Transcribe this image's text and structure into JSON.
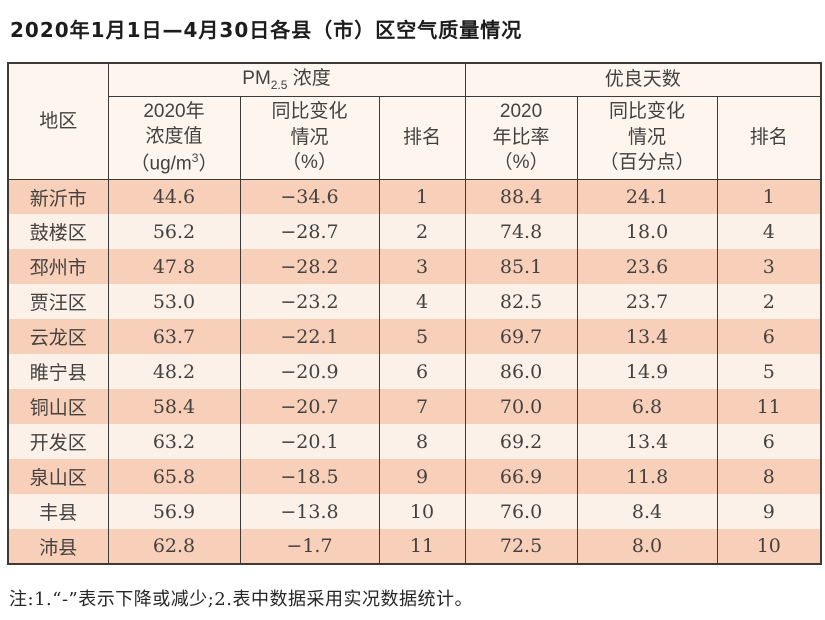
{
  "title": "2020年1月1日—4月30日各县（市）区空气质量情况",
  "colors": {
    "row_odd": "#f8d0ba",
    "row_even": "#fcf1e9",
    "header_bg": "#fdf5ee",
    "border": "#3d3a38",
    "text": "#44413f"
  },
  "table": {
    "header": {
      "region": "地区",
      "pm_group": {
        "prefix": "PM",
        "sub": "2.5",
        "suffix": " 浓度"
      },
      "days_group": "优良天数",
      "pm_value": {
        "line1": "2020年",
        "line2": "浓度值",
        "unit_pre": "（ug/m",
        "unit_sup": "3",
        "unit_post": "）"
      },
      "pm_change": {
        "line1": "同比变化",
        "line2": "情况",
        "line3": "（%）"
      },
      "pm_rank": "排名",
      "rate": {
        "line1": "2020",
        "line2": "年比率",
        "line3": "（%）"
      },
      "rate_change": {
        "line1": "同比变化",
        "line2": "情况",
        "line3": "（百分点）"
      },
      "rate_rank": "排名"
    },
    "rows": [
      {
        "region": "新沂市",
        "pm_value": "44.6",
        "pm_change": "−34.6",
        "pm_rank": "1",
        "rate": "88.4",
        "rate_change": "24.1",
        "rate_rank": "1"
      },
      {
        "region": "鼓楼区",
        "pm_value": "56.2",
        "pm_change": "−28.7",
        "pm_rank": "2",
        "rate": "74.8",
        "rate_change": "18.0",
        "rate_rank": "4"
      },
      {
        "region": "邳州市",
        "pm_value": "47.8",
        "pm_change": "−28.2",
        "pm_rank": "3",
        "rate": "85.1",
        "rate_change": "23.6",
        "rate_rank": "3"
      },
      {
        "region": "贾汪区",
        "pm_value": "53.0",
        "pm_change": "−23.2",
        "pm_rank": "4",
        "rate": "82.5",
        "rate_change": "23.7",
        "rate_rank": "2"
      },
      {
        "region": "云龙区",
        "pm_value": "63.7",
        "pm_change": "−22.1",
        "pm_rank": "5",
        "rate": "69.7",
        "rate_change": "13.4",
        "rate_rank": "6"
      },
      {
        "region": "睢宁县",
        "pm_value": "48.2",
        "pm_change": "−20.9",
        "pm_rank": "6",
        "rate": "86.0",
        "rate_change": "14.9",
        "rate_rank": "5"
      },
      {
        "region": "铜山区",
        "pm_value": "58.4",
        "pm_change": "−20.7",
        "pm_rank": "7",
        "rate": "70.0",
        "rate_change": "6.8",
        "rate_rank": "11"
      },
      {
        "region": "开发区",
        "pm_value": "63.2",
        "pm_change": "−20.1",
        "pm_rank": "8",
        "rate": "69.2",
        "rate_change": "13.4",
        "rate_rank": "6"
      },
      {
        "region": "泉山区",
        "pm_value": "65.8",
        "pm_change": "−18.5",
        "pm_rank": "9",
        "rate": "66.9",
        "rate_change": "11.8",
        "rate_rank": "8"
      },
      {
        "region": "丰县",
        "pm_value": "56.9",
        "pm_change": "−13.8",
        "pm_rank": "10",
        "rate": "76.0",
        "rate_change": "8.4",
        "rate_rank": "9"
      },
      {
        "region": "沛县",
        "pm_value": "62.8",
        "pm_change": "−1.7",
        "pm_rank": "11",
        "rate": "72.5",
        "rate_change": "8.0",
        "rate_rank": "10"
      }
    ]
  },
  "footnote": "注:1.“-”表示下降或减少;2.表中数据采用实况数据统计。"
}
